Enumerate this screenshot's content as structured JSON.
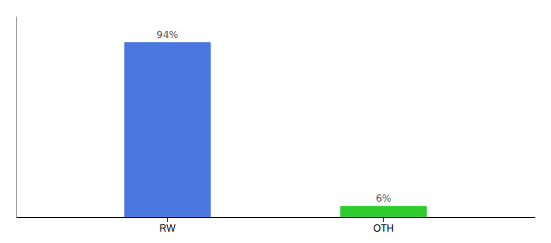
{
  "chart_data": {
    "type": "bar",
    "categories": [
      "RW",
      "OTH"
    ],
    "values": [
      94,
      6
    ],
    "value_labels": [
      "94%",
      "6%"
    ],
    "colors": [
      "#4b78e0",
      "#2ecc2e"
    ],
    "ylim": [
      0,
      108
    ],
    "data_labels": true,
    "tick_labels": "x"
  }
}
